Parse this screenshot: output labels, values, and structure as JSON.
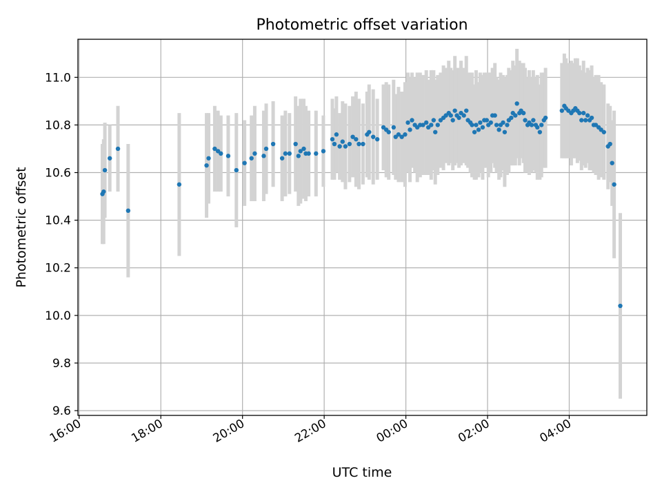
{
  "chart_data": {
    "type": "scatter",
    "title": "Photometric offset variation",
    "xlabel": "UTC time",
    "ylabel": "Photometric offset",
    "grid": true,
    "x_unit": "hours since 16:00 UTC",
    "xlim": [
      -0.03,
      13.9
    ],
    "ylim": [
      9.58,
      11.16
    ],
    "x_ticks": [
      {
        "value": 0,
        "label": "16:00"
      },
      {
        "value": 2,
        "label": "18:00"
      },
      {
        "value": 4,
        "label": "20:00"
      },
      {
        "value": 6,
        "label": "22:00"
      },
      {
        "value": 8,
        "label": "00:00"
      },
      {
        "value": 10,
        "label": "02:00"
      },
      {
        "value": 12,
        "label": "04:00"
      }
    ],
    "y_ticks": [
      {
        "value": 9.6,
        "label": "9.6"
      },
      {
        "value": 9.8,
        "label": "9.8"
      },
      {
        "value": 10.0,
        "label": "10.0"
      },
      {
        "value": 10.2,
        "label": "10.2"
      },
      {
        "value": 10.4,
        "label": "10.4"
      },
      {
        "value": 10.6,
        "label": "10.6"
      },
      {
        "value": 10.8,
        "label": "10.8"
      },
      {
        "value": 11.0,
        "label": "11.0"
      }
    ],
    "series": [
      {
        "name": "offset",
        "marker_color": "#1f77b4",
        "errorbar_color": "#d3d3d3",
        "points": [
          [
            0.57,
            10.51,
            0.21
          ],
          [
            0.6,
            10.52,
            0.22
          ],
          [
            0.63,
            10.61,
            0.2
          ],
          [
            0.75,
            10.66,
            0.14
          ],
          [
            0.95,
            10.7,
            0.18
          ],
          [
            1.2,
            10.44,
            0.28
          ],
          [
            2.45,
            10.55,
            0.3
          ],
          [
            3.12,
            10.63,
            0.22
          ],
          [
            3.17,
            10.66,
            0.19
          ],
          [
            3.32,
            10.7,
            0.18
          ],
          [
            3.4,
            10.69,
            0.17
          ],
          [
            3.47,
            10.68,
            0.16
          ],
          [
            3.65,
            10.67,
            0.17
          ],
          [
            3.85,
            10.61,
            0.24
          ],
          [
            4.05,
            10.64,
            0.18
          ],
          [
            4.22,
            10.66,
            0.18
          ],
          [
            4.3,
            10.68,
            0.2
          ],
          [
            4.52,
            10.67,
            0.19
          ],
          [
            4.58,
            10.7,
            0.19
          ],
          [
            4.75,
            10.72,
            0.18
          ],
          [
            4.97,
            10.66,
            0.18
          ],
          [
            5.05,
            10.68,
            0.18
          ],
          [
            5.15,
            10.68,
            0.17
          ],
          [
            5.3,
            10.72,
            0.2
          ],
          [
            5.37,
            10.67,
            0.21
          ],
          [
            5.42,
            10.69,
            0.22
          ],
          [
            5.5,
            10.7,
            0.21
          ],
          [
            5.55,
            10.68,
            0.2
          ],
          [
            5.62,
            10.68,
            0.18
          ],
          [
            5.8,
            10.68,
            0.18
          ],
          [
            5.98,
            10.69,
            0.15
          ],
          [
            6.2,
            10.74,
            0.17
          ],
          [
            6.25,
            10.72,
            0.15
          ],
          [
            6.3,
            10.76,
            0.16
          ],
          [
            6.38,
            10.71,
            0.14
          ],
          [
            6.45,
            10.73,
            0.17
          ],
          [
            6.52,
            10.71,
            0.18
          ],
          [
            6.62,
            10.72,
            0.16
          ],
          [
            6.7,
            10.75,
            0.17
          ],
          [
            6.78,
            10.74,
            0.2
          ],
          [
            6.85,
            10.72,
            0.19
          ],
          [
            6.95,
            10.72,
            0.17
          ],
          [
            7.05,
            10.76,
            0.18
          ],
          [
            7.1,
            10.77,
            0.2
          ],
          [
            7.2,
            10.75,
            0.2
          ],
          [
            7.3,
            10.74,
            0.17
          ],
          [
            7.45,
            10.79,
            0.18
          ],
          [
            7.52,
            10.78,
            0.2
          ],
          [
            7.58,
            10.77,
            0.2
          ],
          [
            7.7,
            10.79,
            0.2
          ],
          [
            7.75,
            10.75,
            0.18
          ],
          [
            7.82,
            10.76,
            0.2
          ],
          [
            7.9,
            10.75,
            0.19
          ],
          [
            7.98,
            10.76,
            0.22
          ],
          [
            8.05,
            10.81,
            0.21
          ],
          [
            8.1,
            10.78,
            0.22
          ],
          [
            8.15,
            10.82,
            0.2
          ],
          [
            8.22,
            10.8,
            0.2
          ],
          [
            8.28,
            10.79,
            0.23
          ],
          [
            8.35,
            10.8,
            0.22
          ],
          [
            8.42,
            10.8,
            0.21
          ],
          [
            8.5,
            10.81,
            0.22
          ],
          [
            8.55,
            10.79,
            0.2
          ],
          [
            8.62,
            10.8,
            0.23
          ],
          [
            8.68,
            10.82,
            0.21
          ],
          [
            8.72,
            10.77,
            0.22
          ],
          [
            8.78,
            10.8,
            0.21
          ],
          [
            8.85,
            10.82,
            0.2
          ],
          [
            8.92,
            10.83,
            0.22
          ],
          [
            8.98,
            10.84,
            0.2
          ],
          [
            9.05,
            10.85,
            0.22
          ],
          [
            9.1,
            10.84,
            0.2
          ],
          [
            9.15,
            10.82,
            0.21
          ],
          [
            9.2,
            10.86,
            0.23
          ],
          [
            9.25,
            10.84,
            0.2
          ],
          [
            9.3,
            10.83,
            0.21
          ],
          [
            9.35,
            10.85,
            0.22
          ],
          [
            9.42,
            10.84,
            0.2
          ],
          [
            9.48,
            10.86,
            0.23
          ],
          [
            9.52,
            10.82,
            0.2
          ],
          [
            9.58,
            10.81,
            0.21
          ],
          [
            9.62,
            10.8,
            0.22
          ],
          [
            9.68,
            10.77,
            0.2
          ],
          [
            9.72,
            10.8,
            0.23
          ],
          [
            9.78,
            10.78,
            0.2
          ],
          [
            9.82,
            10.81,
            0.21
          ],
          [
            9.88,
            10.79,
            0.22
          ],
          [
            9.92,
            10.82,
            0.2
          ],
          [
            9.98,
            10.82,
            0.2
          ],
          [
            10.02,
            10.8,
            0.22
          ],
          [
            10.08,
            10.81,
            0.21
          ],
          [
            10.12,
            10.84,
            0.2
          ],
          [
            10.18,
            10.84,
            0.22
          ],
          [
            10.22,
            10.8,
            0.2
          ],
          [
            10.28,
            10.78,
            0.21
          ],
          [
            10.32,
            10.8,
            0.22
          ],
          [
            10.38,
            10.81,
            0.2
          ],
          [
            10.42,
            10.77,
            0.23
          ],
          [
            10.48,
            10.8,
            0.21
          ],
          [
            10.52,
            10.82,
            0.22
          ],
          [
            10.58,
            10.83,
            0.2
          ],
          [
            10.62,
            10.85,
            0.22
          ],
          [
            10.68,
            10.84,
            0.21
          ],
          [
            10.72,
            10.89,
            0.23
          ],
          [
            10.78,
            10.85,
            0.22
          ],
          [
            10.82,
            10.86,
            0.2
          ],
          [
            10.88,
            10.85,
            0.21
          ],
          [
            10.92,
            10.82,
            0.22
          ],
          [
            10.98,
            10.8,
            0.2
          ],
          [
            11.02,
            10.81,
            0.22
          ],
          [
            11.08,
            10.8,
            0.2
          ],
          [
            11.12,
            10.82,
            0.21
          ],
          [
            11.18,
            10.8,
            0.2
          ],
          [
            11.22,
            10.79,
            0.22
          ],
          [
            11.28,
            10.77,
            0.2
          ],
          [
            11.32,
            10.8,
            0.22
          ],
          [
            11.38,
            10.82,
            0.2
          ],
          [
            11.42,
            10.83,
            0.21
          ],
          [
            11.82,
            10.86,
            0.2
          ],
          [
            11.88,
            10.88,
            0.22
          ],
          [
            11.92,
            10.87,
            0.21
          ],
          [
            11.98,
            10.86,
            0.2
          ],
          [
            12.05,
            10.85,
            0.22
          ],
          [
            12.1,
            10.86,
            0.2
          ],
          [
            12.15,
            10.87,
            0.21
          ],
          [
            12.2,
            10.86,
            0.22
          ],
          [
            12.25,
            10.85,
            0.2
          ],
          [
            12.3,
            10.82,
            0.21
          ],
          [
            12.35,
            10.85,
            0.22
          ],
          [
            12.4,
            10.82,
            0.2
          ],
          [
            12.45,
            10.84,
            0.2
          ],
          [
            12.5,
            10.82,
            0.21
          ],
          [
            12.55,
            10.83,
            0.22
          ],
          [
            12.6,
            10.8,
            0.2
          ],
          [
            12.65,
            10.8,
            0.21
          ],
          [
            12.72,
            10.79,
            0.22
          ],
          [
            12.78,
            10.78,
            0.2
          ],
          [
            12.85,
            10.77,
            0.2
          ],
          [
            12.95,
            10.71,
            0.18
          ],
          [
            13.0,
            10.72,
            0.16
          ],
          [
            13.05,
            10.64,
            0.18
          ],
          [
            13.1,
            10.55,
            0.31
          ],
          [
            13.25,
            10.04,
            0.39
          ]
        ]
      }
    ]
  }
}
